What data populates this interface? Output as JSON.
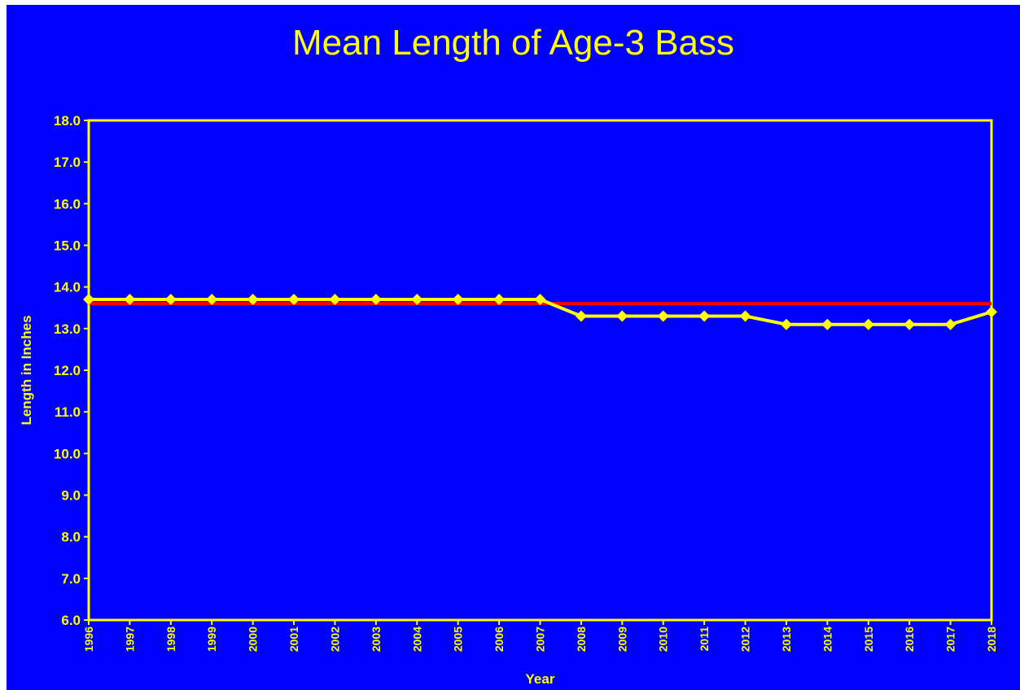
{
  "chart_data": {
    "type": "line",
    "title": "Mean Length of Age-3 Bass",
    "xlabel": "Year",
    "ylabel": "Length in Inches",
    "x": [
      "1996",
      "1997",
      "1998",
      "1999",
      "2000",
      "2001",
      "2002",
      "2003",
      "2004",
      "2005",
      "2006",
      "2007",
      "2008",
      "2009",
      "2010",
      "2011",
      "2012",
      "2013",
      "2014",
      "2015",
      "2016",
      "2017",
      "2018"
    ],
    "ylim": [
      6.0,
      18.0
    ],
    "y_ticks": [
      "6.0",
      "7.0",
      "8.0",
      "9.0",
      "10.0",
      "11.0",
      "12.0",
      "13.0",
      "14.0",
      "15.0",
      "16.0",
      "17.0",
      "18.0"
    ],
    "series": [
      {
        "values": [
          13.7,
          13.7,
          13.7,
          13.7,
          13.7,
          13.7,
          13.7,
          13.7,
          13.7,
          13.7,
          13.7,
          13.7,
          13.3,
          13.3,
          13.3,
          13.3,
          13.3,
          13.1,
          13.1,
          13.1,
          13.1,
          13.1,
          13.4
        ],
        "color": "#FFFF00",
        "marker": "diamond"
      }
    ],
    "reference_line": {
      "value": 13.6,
      "color": "#FF0000"
    },
    "grid": false,
    "legend": "none",
    "colors": {
      "background": "#0000FF",
      "text": "#FFFF00",
      "plot_border": "#FFFF00"
    }
  }
}
